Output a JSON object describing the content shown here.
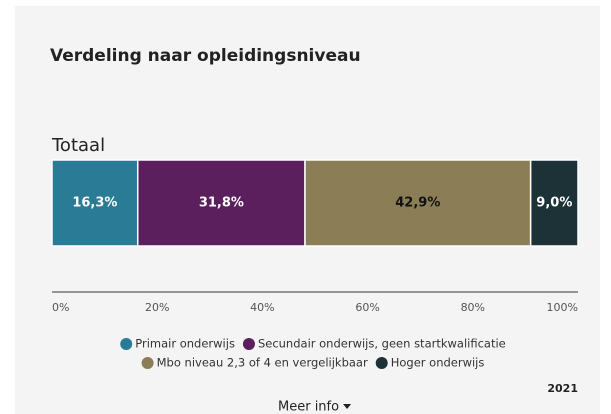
{
  "chart_data": {
    "type": "stacked_bar_horizontal",
    "title": "Verdeling naar opleidingsniveau",
    "categories": [
      "Totaal"
    ],
    "series": [
      {
        "name": "Primair onderwijs",
        "color": "#2a7b96",
        "values": [
          16.3
        ],
        "value_labels": [
          "16,3%"
        ]
      },
      {
        "name": "Secundair onderwijs, geen startkwalificatie",
        "color": "#5b1f5e",
        "values": [
          31.8
        ],
        "value_labels": [
          "31,8%"
        ]
      },
      {
        "name": "Mbo niveau 2,3 of 4 en vergelijkbaar",
        "color": "#8b7d55",
        "values": [
          42.9
        ],
        "value_labels": [
          "42,9%"
        ]
      },
      {
        "name": "Hoger onderwijs",
        "color": "#1c3236",
        "values": [
          9.0
        ],
        "value_labels": [
          "9,0%"
        ]
      }
    ],
    "xlim": [
      0,
      100
    ],
    "xticks": [
      {
        "value": 0,
        "label": "0%"
      },
      {
        "value": 20,
        "label": "20%"
      },
      {
        "value": 40,
        "label": "40%"
      },
      {
        "value": 60,
        "label": "60%"
      },
      {
        "value": 80,
        "label": "80%"
      },
      {
        "value": 100,
        "label": "100%"
      }
    ],
    "legend": "bottom",
    "year": "2021",
    "more_info": "Meer info"
  }
}
